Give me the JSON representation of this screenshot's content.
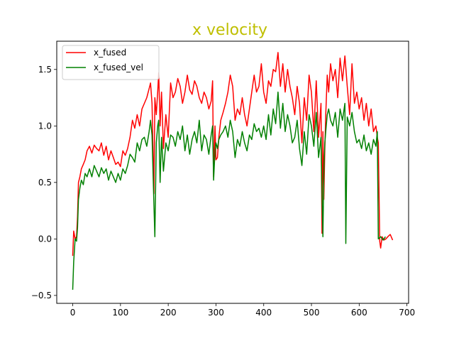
{
  "chart_data": {
    "type": "line",
    "title": "x velocity",
    "title_color": "#bfbf00",
    "xlabel": "",
    "ylabel": "",
    "xlim": [
      -33.5,
      703.5
    ],
    "ylim": [
      -0.57,
      1.75
    ],
    "xticks": [
      0,
      100,
      200,
      300,
      400,
      500,
      600,
      700
    ],
    "yticks": [
      -0.5,
      0.0,
      0.5,
      1.0,
      1.5
    ],
    "xtick_labels": [
      "0",
      "100",
      "200",
      "300",
      "400",
      "500",
      "600",
      "700"
    ],
    "ytick_labels": [
      "−0.5",
      "0.0",
      "0.5",
      "1.0",
      "1.5"
    ],
    "grid": false,
    "legend_position": "top-left",
    "series": [
      {
        "name": "x_fused",
        "color": "#ff0000",
        "x": [
          0,
          2,
          5,
          8,
          10,
          12,
          15,
          18,
          22,
          26,
          30,
          35,
          40,
          45,
          50,
          55,
          60,
          65,
          70,
          75,
          80,
          85,
          90,
          95,
          100,
          105,
          110,
          115,
          120,
          125,
          130,
          135,
          140,
          145,
          150,
          155,
          160,
          163,
          166,
          170,
          172,
          175,
          178,
          180,
          183,
          186,
          190,
          195,
          200,
          205,
          210,
          215,
          220,
          225,
          230,
          235,
          240,
          245,
          250,
          255,
          260,
          265,
          270,
          275,
          280,
          285,
          290,
          293,
          295,
          298,
          300,
          303,
          306,
          310,
          315,
          320,
          325,
          330,
          335,
          340,
          345,
          350,
          355,
          360,
          365,
          370,
          375,
          380,
          385,
          390,
          395,
          400,
          405,
          410,
          415,
          420,
          425,
          430,
          435,
          440,
          445,
          450,
          455,
          460,
          465,
          470,
          475,
          480,
          485,
          490,
          495,
          500,
          505,
          510,
          515,
          520,
          522,
          524,
          526,
          528,
          530,
          533,
          536,
          540,
          545,
          550,
          555,
          560,
          565,
          570,
          575,
          580,
          585,
          590,
          595,
          600,
          605,
          610,
          615,
          620,
          625,
          630,
          635,
          638,
          640,
          643,
          645,
          648,
          652,
          656,
          660,
          665,
          670
        ],
        "values": [
          -0.15,
          0.07,
          0.0,
          0.02,
          0.2,
          0.5,
          0.55,
          0.62,
          0.66,
          0.7,
          0.78,
          0.82,
          0.76,
          0.83,
          0.8,
          0.78,
          0.85,
          0.74,
          0.82,
          0.7,
          0.78,
          0.72,
          0.66,
          0.68,
          0.64,
          0.78,
          0.74,
          0.8,
          0.9,
          1.05,
          0.98,
          1.1,
          1.0,
          1.15,
          1.2,
          1.25,
          1.33,
          1.38,
          1.2,
          0.4,
          1.25,
          1.1,
          1.3,
          1.47,
          1.0,
          1.3,
          0.8,
          1.1,
          0.9,
          1.38,
          1.25,
          1.3,
          1.42,
          1.35,
          1.2,
          1.3,
          1.45,
          1.32,
          1.28,
          1.4,
          1.35,
          1.25,
          1.2,
          1.3,
          1.25,
          1.15,
          1.22,
          1.4,
          0.55,
          1.0,
          0.7,
          0.72,
          0.9,
          1.05,
          1.12,
          1.2,
          1.3,
          1.45,
          1.35,
          1.05,
          1.15,
          1.1,
          1.25,
          1.1,
          1.0,
          1.15,
          1.3,
          1.45,
          1.3,
          1.35,
          1.55,
          1.3,
          1.2,
          1.4,
          1.35,
          1.5,
          1.48,
          1.65,
          1.35,
          1.55,
          1.3,
          1.5,
          1.35,
          1.25,
          1.1,
          1.35,
          1.2,
          0.85,
          1.25,
          1.05,
          1.45,
          1.3,
          0.95,
          1.4,
          0.9,
          1.2,
          0.05,
          0.95,
          0.35,
          0.8,
          1.1,
          1.45,
          1.3,
          1.55,
          1.4,
          1.5,
          1.25,
          1.6,
          1.4,
          1.62,
          1.35,
          1.1,
          1.55,
          1.2,
          1.3,
          1.15,
          1.25,
          1.05,
          1.2,
          1.0,
          1.15,
          0.95,
          1.0,
          0.9,
          0.85,
          -0.02,
          -0.08,
          0.02,
          -0.01,
          0.0,
          0.02,
          0.04,
          -0.01
        ]
      },
      {
        "name": "x_fused_vel",
        "color": "#008000",
        "x": [
          0,
          2,
          5,
          8,
          10,
          12,
          15,
          18,
          22,
          26,
          30,
          35,
          40,
          45,
          50,
          55,
          60,
          65,
          70,
          75,
          80,
          85,
          90,
          95,
          100,
          105,
          110,
          115,
          120,
          125,
          130,
          135,
          140,
          145,
          150,
          155,
          160,
          163,
          166,
          170,
          172,
          175,
          178,
          180,
          183,
          186,
          190,
          195,
          200,
          205,
          210,
          215,
          220,
          225,
          230,
          235,
          240,
          245,
          250,
          255,
          260,
          265,
          270,
          275,
          280,
          285,
          290,
          293,
          295,
          298,
          300,
          303,
          306,
          310,
          315,
          320,
          325,
          330,
          335,
          340,
          345,
          350,
          355,
          360,
          365,
          370,
          375,
          380,
          385,
          390,
          395,
          400,
          405,
          410,
          415,
          420,
          425,
          430,
          435,
          440,
          445,
          450,
          455,
          460,
          465,
          470,
          475,
          480,
          485,
          490,
          495,
          500,
          505,
          510,
          515,
          520,
          522,
          524,
          526,
          528,
          530,
          533,
          536,
          540,
          545,
          550,
          555,
          560,
          565,
          570,
          572,
          575,
          580,
          585,
          590,
          595,
          600,
          605,
          610,
          615,
          620,
          625,
          630,
          635,
          638,
          640,
          645,
          650,
          655
        ],
        "values": [
          -0.45,
          -0.2,
          0.0,
          -0.02,
          0.1,
          0.35,
          0.45,
          0.52,
          0.48,
          0.58,
          0.55,
          0.62,
          0.55,
          0.65,
          0.6,
          0.55,
          0.63,
          0.58,
          0.62,
          0.52,
          0.6,
          0.55,
          0.5,
          0.58,
          0.52,
          0.62,
          0.58,
          0.65,
          0.75,
          0.72,
          0.68,
          0.85,
          0.78,
          0.88,
          0.9,
          0.82,
          0.95,
          1.05,
          0.92,
          0.3,
          0.02,
          0.85,
          1.0,
          1.05,
          0.5,
          0.9,
          0.6,
          0.85,
          0.78,
          0.92,
          0.9,
          0.82,
          0.95,
          0.88,
          1.0,
          0.78,
          0.92,
          0.75,
          0.88,
          0.95,
          0.85,
          1.05,
          0.78,
          0.92,
          0.88,
          0.75,
          0.92,
          1.0,
          0.52,
          0.78,
          0.85,
          0.8,
          0.88,
          0.92,
          0.95,
          1.0,
          0.9,
          1.05,
          0.95,
          0.72,
          0.88,
          0.82,
          0.95,
          0.85,
          0.78,
          0.92,
          0.88,
          1.02,
          0.95,
          0.98,
          0.9,
          1.0,
          0.88,
          1.1,
          0.92,
          1.15,
          1.02,
          1.3,
          0.98,
          1.2,
          0.95,
          1.1,
          1.0,
          0.85,
          0.9,
          1.05,
          0.8,
          0.65,
          0.95,
          0.75,
          1.1,
          1.0,
          0.82,
          1.12,
          0.72,
          0.9,
          0.4,
          0.02,
          0.6,
          0.85,
          0.95,
          1.1,
          1.15,
          1.05,
          1.0,
          1.12,
          0.9,
          1.15,
          1.05,
          1.2,
          -0.04,
          1.08,
          1.0,
          1.12,
          0.95,
          0.85,
          0.88,
          0.8,
          0.92,
          0.78,
          0.85,
          0.75,
          0.88,
          0.82,
          0.95,
          0.0,
          0.02,
          -0.01,
          0.02
        ]
      }
    ]
  }
}
